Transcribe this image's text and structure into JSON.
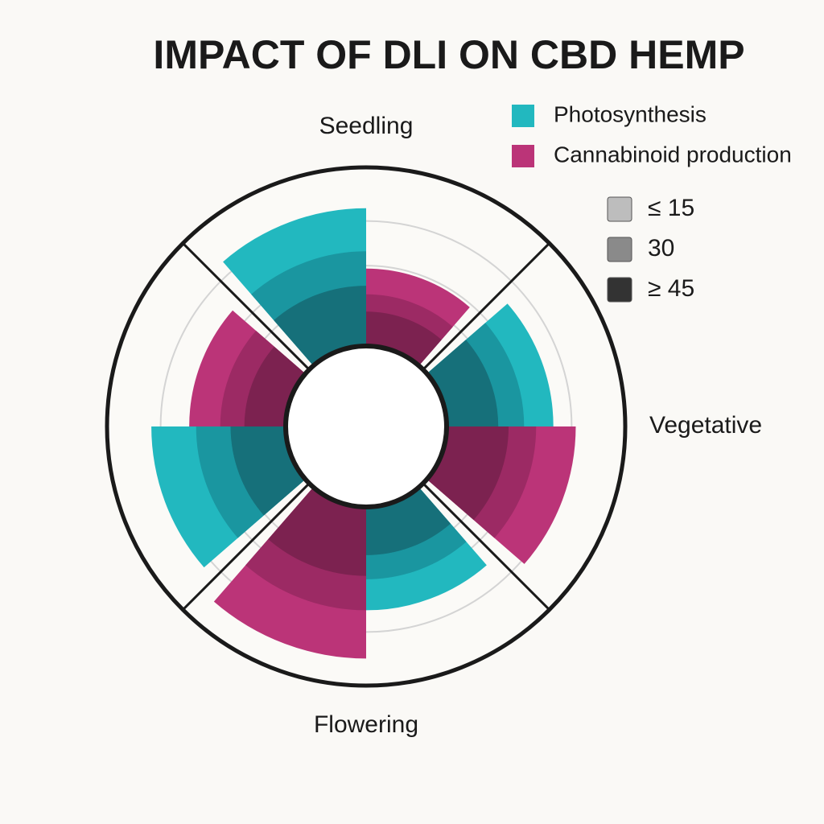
{
  "chart_data": {
    "type": "polar-bar",
    "title": "IMPACT OF DLI ON CBD HEMP",
    "categories": [
      "Seedling",
      "Vegetative",
      "Flowering",
      null
    ],
    "series": [
      {
        "name": "Photosynthesis",
        "color": "#22b8bf",
        "level_colors": [
          "#22b8bf",
          "#1a96a0",
          "#16707a"
        ],
        "values": [
          [
            80,
            55,
            35
          ],
          [
            62,
            45,
            30
          ],
          [
            60,
            42,
            28
          ],
          [
            78,
            52,
            32
          ]
        ]
      },
      {
        "name": "Cannabinoid production",
        "color": "#bb3478",
        "level_colors": [
          "#bb3478",
          "#9c2a64",
          "#7c2250"
        ],
        "values": [
          [
            45,
            30,
            20
          ],
          [
            75,
            52,
            36
          ],
          [
            88,
            60,
            40
          ],
          [
            56,
            38,
            24
          ]
        ]
      }
    ],
    "dli": {
      "levels": [
        {
          "value": 15,
          "label": "≤ 15",
          "color": "#bdbdbd"
        },
        {
          "value": 30,
          "label": "30",
          "color": "#8a8a8a"
        },
        {
          "value": 45,
          "label": "≥ 45",
          "color": "#333333"
        }
      ]
    },
    "rlim": [
      0,
      100
    ],
    "grid": true
  }
}
